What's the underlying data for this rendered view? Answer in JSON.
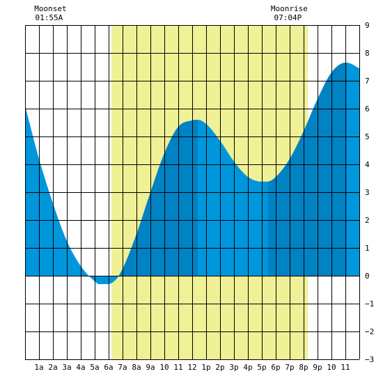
{
  "chart_data": {
    "type": "area",
    "title": "",
    "xlabel": "",
    "ylabel": "",
    "x_range": [
      0,
      24
    ],
    "ylim": [
      -3,
      9
    ],
    "y_ticks": [
      9,
      8,
      7,
      6,
      5,
      4,
      3,
      2,
      1,
      0,
      -1,
      -2,
      -3
    ],
    "y_tick_labels": [
      "9",
      "8",
      "7",
      "6",
      "5",
      "4",
      "3",
      "2",
      "1",
      "0",
      "−1",
      "−2",
      "−3"
    ],
    "x_ticks": [
      1,
      2,
      3,
      4,
      5,
      6,
      7,
      8,
      9,
      10,
      11,
      12,
      13,
      14,
      15,
      16,
      17,
      18,
      19,
      20,
      21,
      22,
      23
    ],
    "x_tick_labels": [
      "1a",
      "2a",
      "3a",
      "4a",
      "5a",
      "6a",
      "7a",
      "8a",
      "9a",
      "10",
      "11",
      "12",
      "1p",
      "2p",
      "3p",
      "4p",
      "5p",
      "6p",
      "7p",
      "8p",
      "9p",
      "10",
      "11"
    ],
    "grid": true,
    "daylight": [
      6.2,
      20.3
    ],
    "tide": {
      "x": [
        0,
        1,
        2,
        3,
        4,
        5,
        5.3,
        5.9,
        6.5,
        7,
        8,
        9,
        10,
        11,
        12,
        12.4,
        13,
        14,
        15,
        16,
        17,
        17.4,
        18,
        19,
        20,
        21,
        22,
        23,
        23.1,
        24
      ],
      "y": [
        6.1,
        4.2,
        2.6,
        1.25,
        0.35,
        -0.2,
        -0.3,
        -0.3,
        -0.15,
        0.25,
        1.5,
        3.0,
        4.4,
        5.35,
        5.58,
        5.6,
        5.45,
        4.85,
        4.1,
        3.55,
        3.38,
        3.38,
        3.55,
        4.2,
        5.2,
        6.35,
        7.3,
        7.65,
        7.65,
        7.45
      ]
    },
    "series_bands": [
      {
        "from": 0,
        "to": 6.55,
        "color": "#0096dc"
      },
      {
        "from": 6.55,
        "to": 12.4,
        "color": "#0082c3"
      },
      {
        "from": 12.4,
        "to": 17.45,
        "color": "#0096dc"
      },
      {
        "from": 17.45,
        "to": 23.1,
        "color": "#0082c3"
      },
      {
        "from": 23.1,
        "to": 24,
        "color": "#0096dc"
      }
    ],
    "annotations": [
      {
        "title": "Moonset",
        "time": "01:55A",
        "x": 1.92
      },
      {
        "title": "Moonrise",
        "time": "07:04P",
        "x": 19.07
      }
    ],
    "colors": {
      "daylight": "#f0f096",
      "grid": "#000000",
      "background": "#ffffff"
    }
  }
}
